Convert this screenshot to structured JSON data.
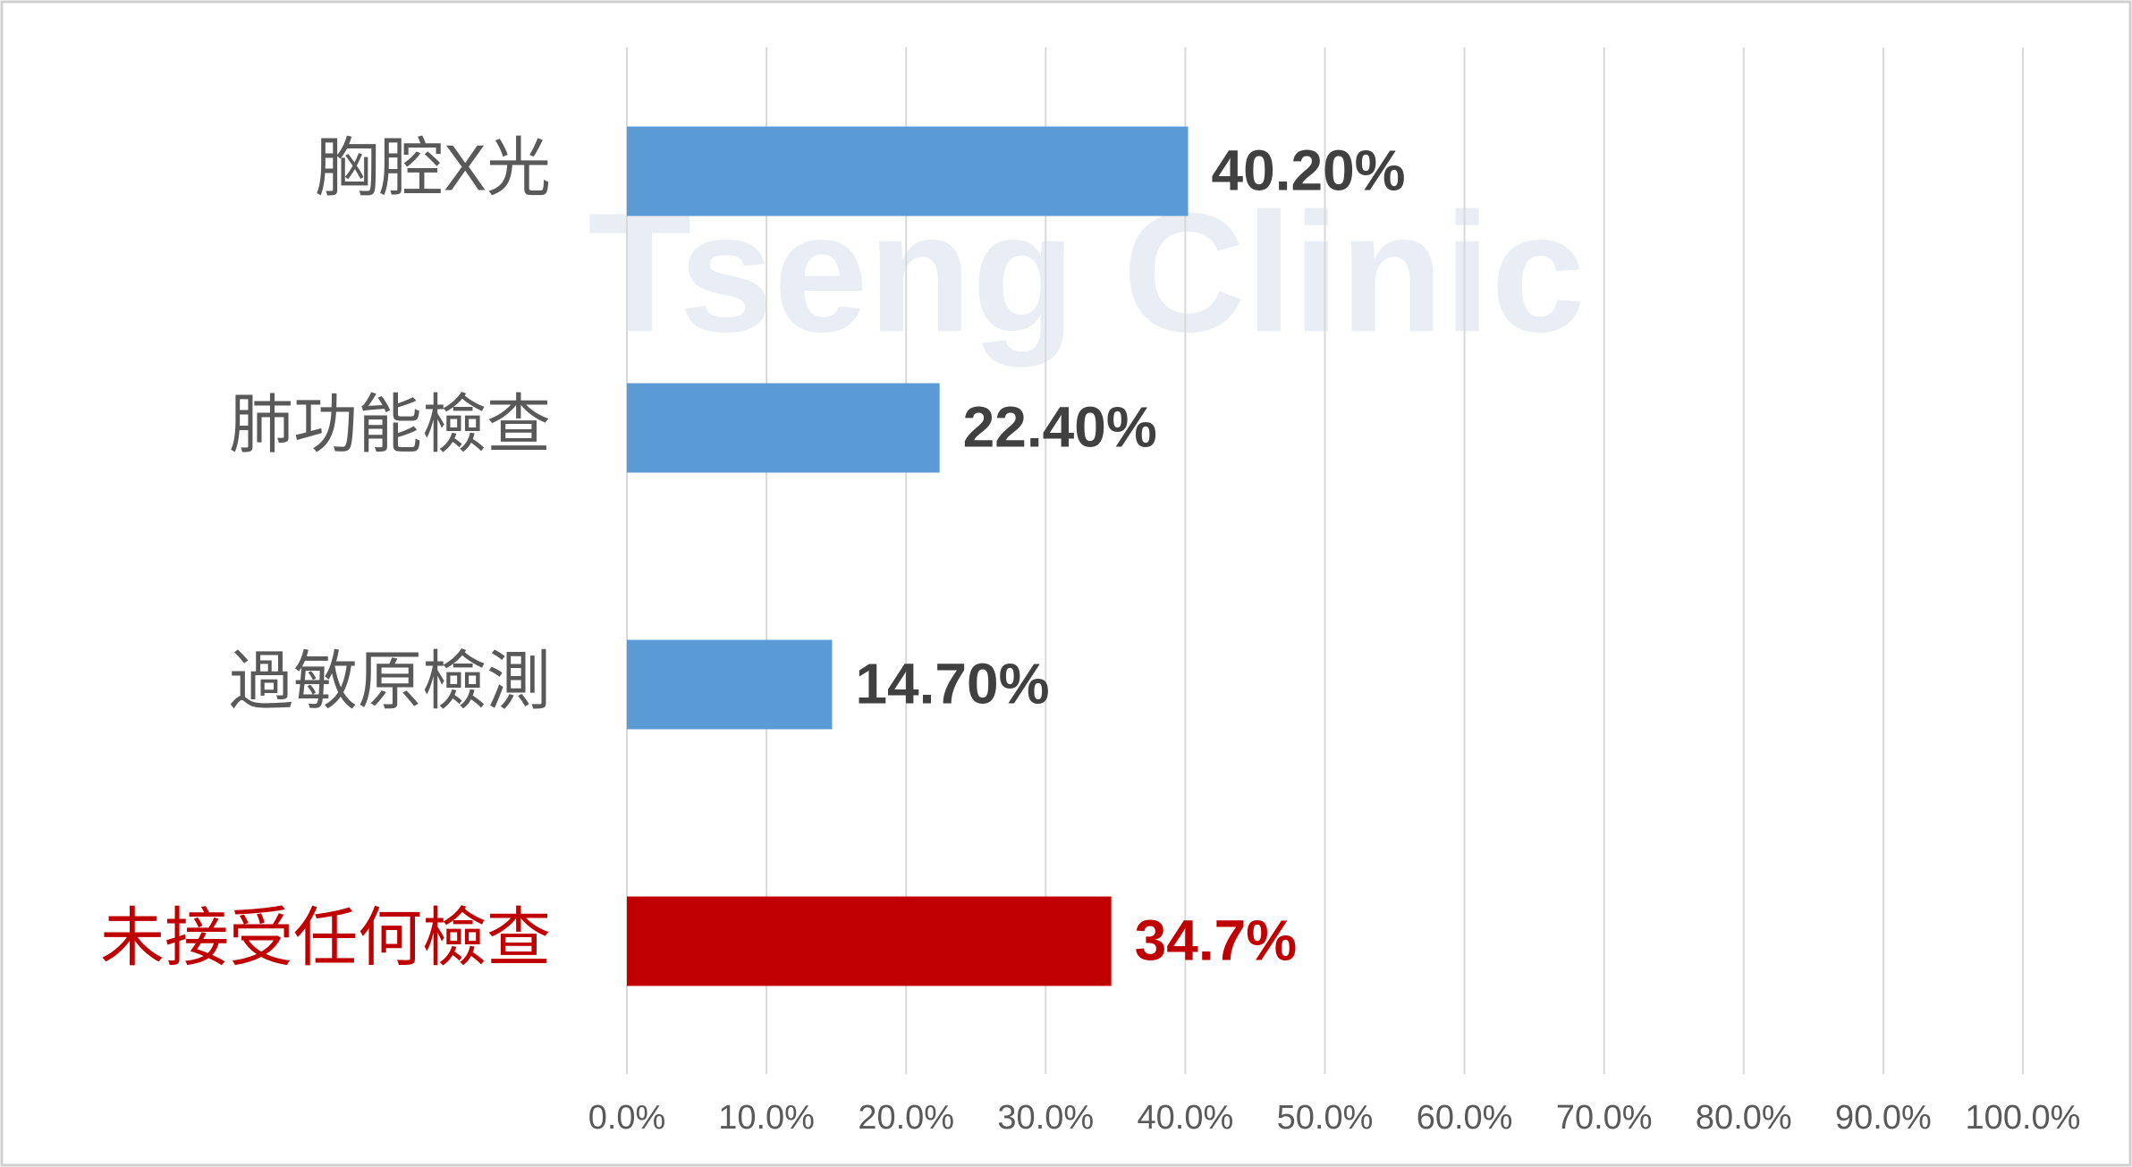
{
  "chart_data": {
    "type": "bar",
    "orientation": "horizontal",
    "watermark": "Tseng Clinic",
    "categories": [
      "胸腔X光",
      "肺功能檢查",
      "過敏原檢測",
      "未接受任何檢查"
    ],
    "values": [
      40.2,
      22.4,
      14.7,
      34.7
    ],
    "value_labels": [
      "40.20%",
      "22.40%",
      "14.70%",
      "34.7%"
    ],
    "colors": [
      "#5b9bd5",
      "#5b9bd5",
      "#5b9bd5",
      "#c00000"
    ],
    "label_colors": [
      "#404040",
      "#404040",
      "#404040",
      "#c00000"
    ],
    "xlim": [
      0,
      100
    ],
    "xticks": [
      {
        "value": 0,
        "label": "0.0%"
      },
      {
        "value": 10,
        "label": "10.0%"
      },
      {
        "value": 20,
        "label": "20.0%"
      },
      {
        "value": 30,
        "label": "30.0%"
      },
      {
        "value": 40,
        "label": "40.0%"
      },
      {
        "value": 50,
        "label": "50.0%"
      },
      {
        "value": 60,
        "label": "60.0%"
      },
      {
        "value": 70,
        "label": "70.0%"
      },
      {
        "value": 80,
        "label": "80.0%"
      },
      {
        "value": 90,
        "label": "90.0%"
      },
      {
        "value": 100,
        "label": "100.0%"
      }
    ],
    "grid": true
  }
}
